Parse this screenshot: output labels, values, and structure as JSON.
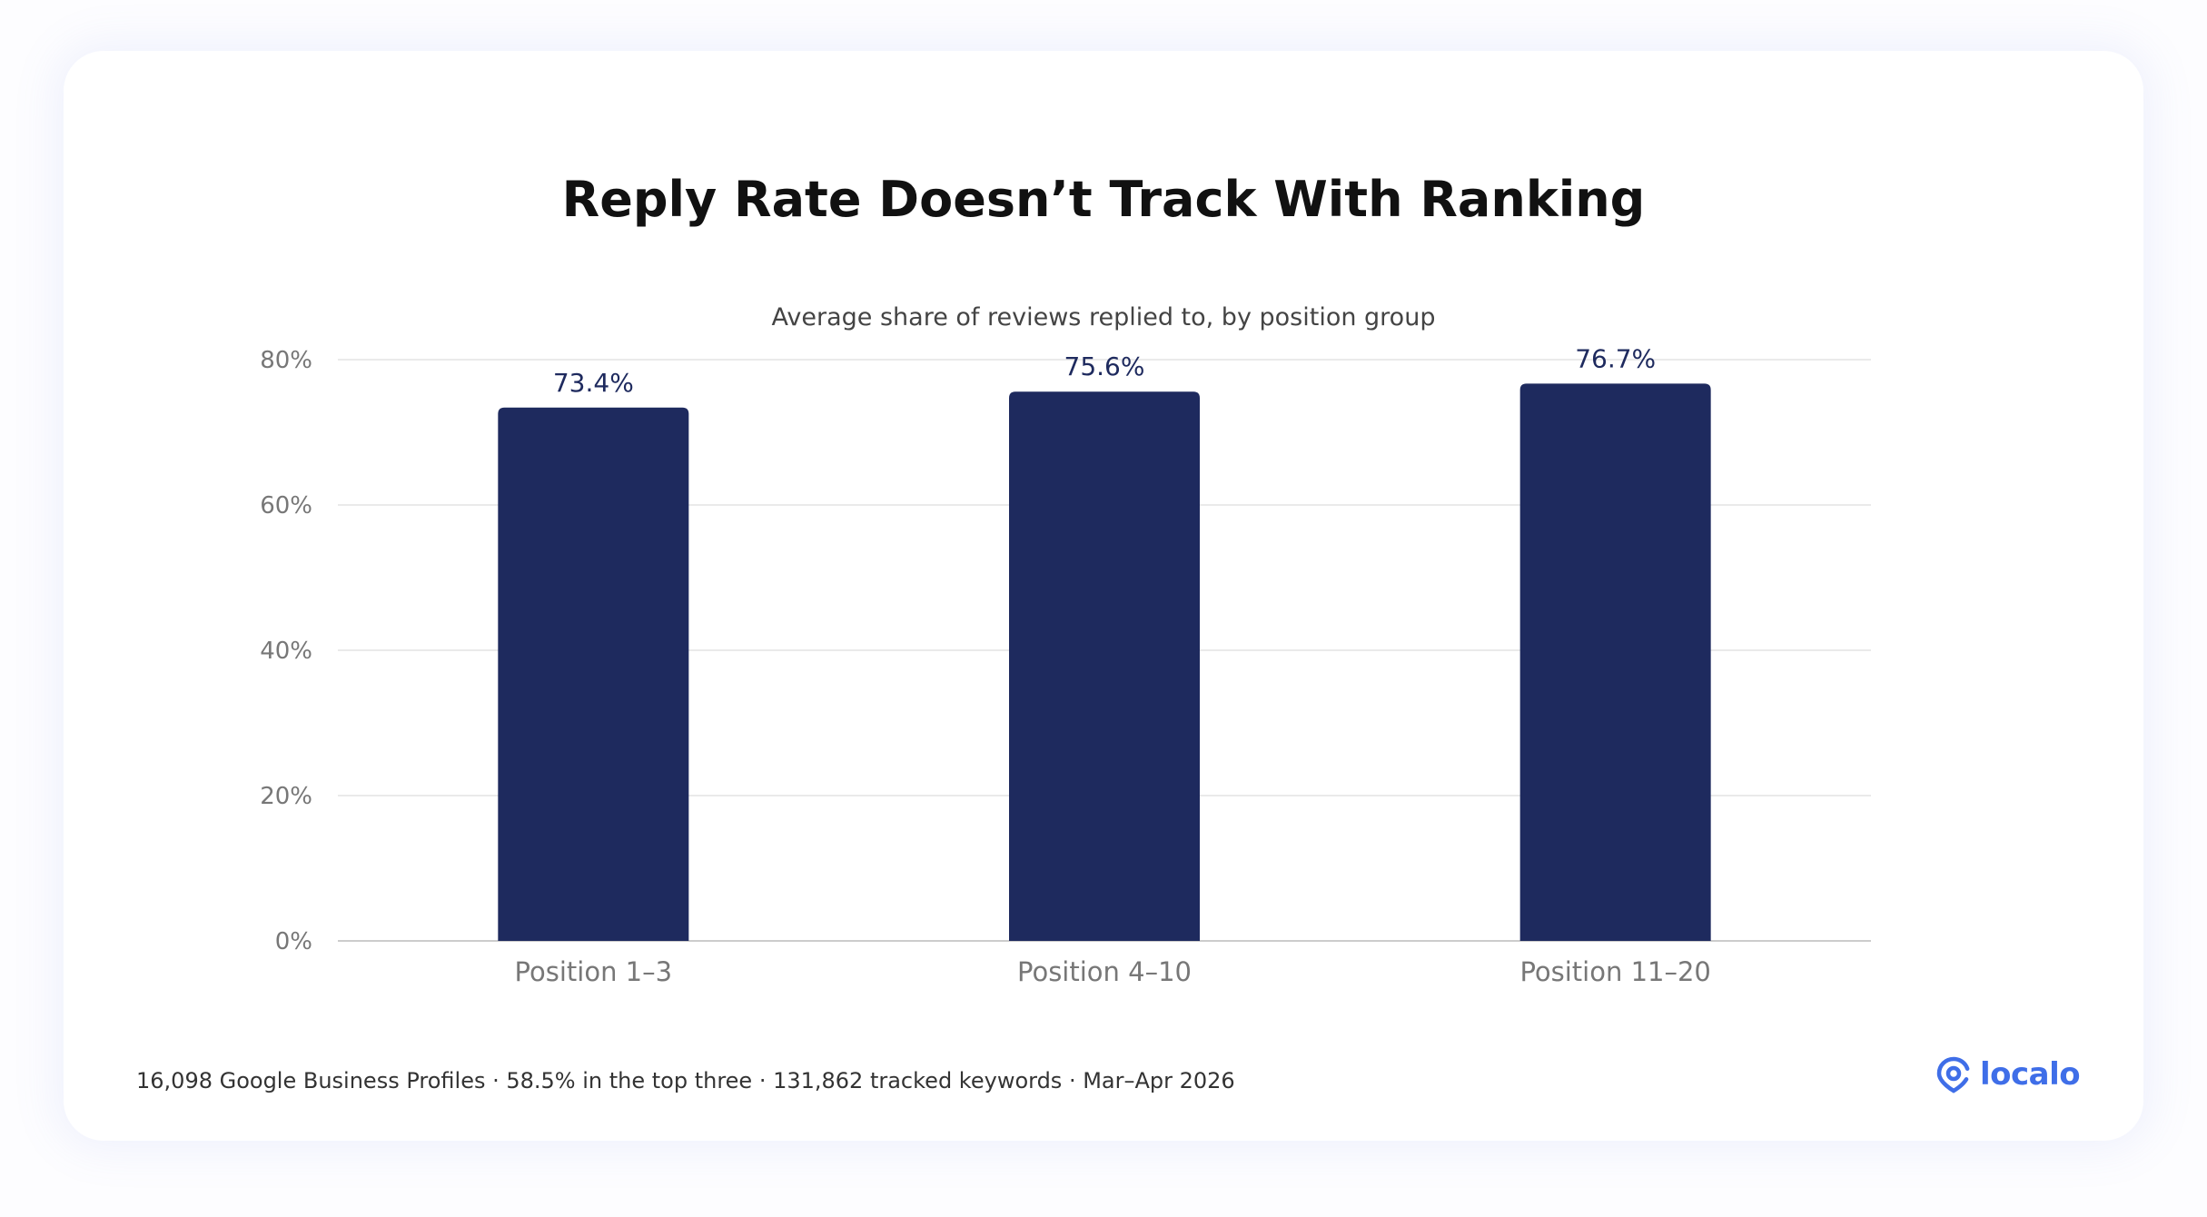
{
  "colors": {
    "bar": "#1e2a5e",
    "grid": "#e3e3e3",
    "axis": "#cccccc",
    "tick_label": "#777777",
    "data_label": "#1e2a5e",
    "brand": "#3f6ee8"
  },
  "footer": {
    "text": "16,098 Google Business Profiles · 58.5% in the top three · 131,862 tracked keywords · Mar–Apr 2026"
  },
  "logo": {
    "text": "localo",
    "icon": "location-pin-icon"
  },
  "chart_data": {
    "type": "bar",
    "title": "Reply Rate Doesn’t Track With Ranking",
    "subtitle": "Average share of reviews replied to, by position group",
    "categories": [
      "Position 1–3",
      "Position 4–10",
      "Position 11–20"
    ],
    "values": [
      73.4,
      75.6,
      76.7
    ],
    "value_labels": [
      "73.4%",
      "75.6%",
      "76.7%"
    ],
    "ylim": [
      0,
      80
    ],
    "yticks": [
      0,
      20,
      40,
      60,
      80
    ],
    "ytick_labels": [
      "0%",
      "20%",
      "40%",
      "60%",
      "80%"
    ],
    "xlabel": "",
    "ylabel": "",
    "grid": true
  }
}
